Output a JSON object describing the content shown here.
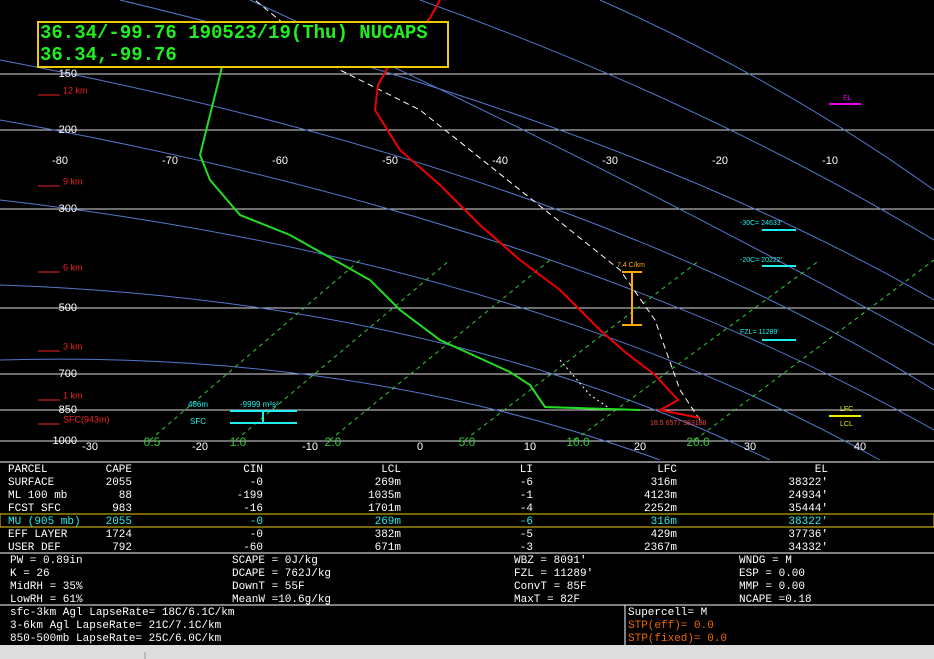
{
  "title_box": {
    "line1": "36.34/-99.76 190523/19(Thu) NUCAPS",
    "line2": "36.34,-99.76"
  },
  "diagram": {
    "isotherm_labels_top": [
      "-80",
      "-70",
      "-60",
      "-50",
      "-40",
      "-30",
      "-20",
      "-10"
    ],
    "temperature_labels_bottom": [
      "-30",
      "-20",
      "-10",
      "0",
      "10",
      "20",
      "30",
      "40"
    ],
    "pressure_labels": [
      "150",
      "200",
      "300",
      "500",
      "700",
      "850",
      "1000"
    ],
    "height_labels": [
      "12 km",
      "9 km",
      "6 km",
      "3 km",
      "1 km",
      "SFC(943m)"
    ],
    "mixing_ratio_labels": [
      "0.5",
      "1.0",
      "2.0",
      "5.0",
      "10.0",
      "20.0"
    ],
    "annotations": {
      "el": "EL",
      "minus30": "-30C= 24633'",
      "minus20": "-20C= 20222'",
      "fzl": "FZL= 11289'",
      "lfc": "LFC",
      "lcl": "LCL",
      "lapse": "7.4 C/km",
      "srh_depth": "486m",
      "srh": "-9999 m²s²",
      "sfc": "SFC",
      "surface_values": "18.5 6577 383188"
    }
  },
  "parcel_table": {
    "header": [
      "PARCEL",
      "CAPE",
      "CIN",
      "LCL",
      "LI",
      "LFC",
      "EL"
    ],
    "rows": [
      [
        "SURFACE",
        "2055",
        "-0",
        "269m",
        "-6",
        "316m",
        "38322'"
      ],
      [
        "ML 100 mb",
        "88",
        "-199",
        "1035m",
        "-1",
        "4123m",
        "24934'"
      ],
      [
        "FCST SFC",
        "983",
        "-16",
        "1701m",
        "-4",
        "2252m",
        "35444'"
      ],
      [
        "MU (905 mb)",
        "2055",
        "-0",
        "269m",
        "-6",
        "316m",
        "38322'"
      ],
      [
        "EFF LAYER",
        "1724",
        "-0",
        "382m",
        "-5",
        "429m",
        "37736'"
      ],
      [
        "USER DEF",
        "792",
        "-60",
        "671m",
        "-3",
        "2367m",
        "34332'"
      ]
    ]
  },
  "indices": [
    [
      "PW = 0.89in",
      "K = 26",
      "MidRH = 35%",
      "LowRH = 61%"
    ],
    [
      "SCAPE = 0J/kg",
      "DCAPE = 762J/kg",
      "DownT = 55F",
      "MeanW =10.6g/kg"
    ],
    [
      "WBZ = 8091'",
      "FZL = 11289'",
      "ConvT = 85F",
      "MaxT = 82F"
    ],
    [
      "WNDG = M",
      "ESP = 0.00",
      "MMP = 0.00",
      "NCAPE =0.18"
    ]
  ],
  "lapse_rates": [
    "sfc-3km Agl LapseRate= 18C/6.1C/km",
    "3-6km Agl LapseRate= 21C/7.1C/km",
    "850-500mb LapseRate= 25C/6.0C/km"
  ],
  "severe": [
    "Supercell= M",
    "STP(eff)= 0.0",
    "STP(fixed)= 0.0"
  ]
}
